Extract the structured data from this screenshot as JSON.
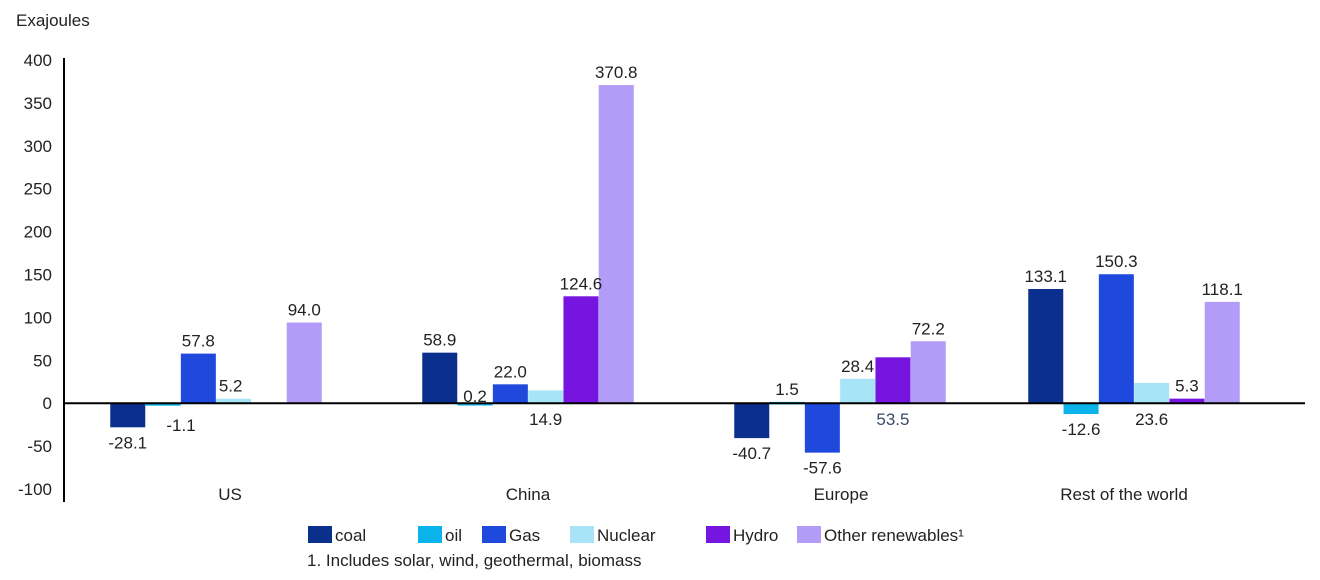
{
  "chart_data": {
    "type": "bar",
    "ylabel": "Exajoules",
    "ylim": [
      -100,
      400
    ],
    "yticks": [
      400,
      350,
      300,
      250,
      200,
      150,
      100,
      50,
      0,
      -50,
      -100
    ],
    "categories": [
      "US",
      "China",
      "Europe",
      "Rest of the world"
    ],
    "series": [
      {
        "name": "coal",
        "color": "#0b2f8c",
        "values": [
          -28.1,
          58.9,
          -40.7,
          133.1
        ],
        "labels": [
          "-28.1",
          "58.9",
          "-40.7",
          "133.1"
        ]
      },
      {
        "name": "oil",
        "color": "#0ab4ea",
        "values": [
          -1.1,
          0.2,
          1.5,
          -12.6
        ],
        "labels": [
          "-1.1",
          "0.2",
          "1.5",
          "-12.6"
        ]
      },
      {
        "name": "Gas",
        "color": "#1f48dc",
        "values": [
          57.8,
          22.0,
          -57.6,
          150.3
        ],
        "labels": [
          "57.8",
          "22.0",
          "-57.6",
          "150.3"
        ]
      },
      {
        "name": "Nuclear",
        "color": "#a8e4f7",
        "values": [
          5.2,
          14.9,
          28.4,
          23.6
        ],
        "labels": [
          "5.2",
          "14.9",
          "28.4",
          "23.6"
        ]
      },
      {
        "name": "Hydro",
        "color": "#7615e0",
        "values": [
          null,
          124.6,
          53.5,
          5.3
        ],
        "labels": [
          "",
          "124.6",
          "53.5",
          "5.3"
        ]
      },
      {
        "name": "Other renewables¹",
        "color": "#b39cf7",
        "values": [
          94.0,
          370.8,
          72.2,
          118.1
        ],
        "labels": [
          "94.0",
          "370.8",
          "72.2",
          "118.1"
        ]
      }
    ],
    "footnote": "1. Includes solar, wind, geothermal, biomass",
    "legend_position": "bottom"
  }
}
